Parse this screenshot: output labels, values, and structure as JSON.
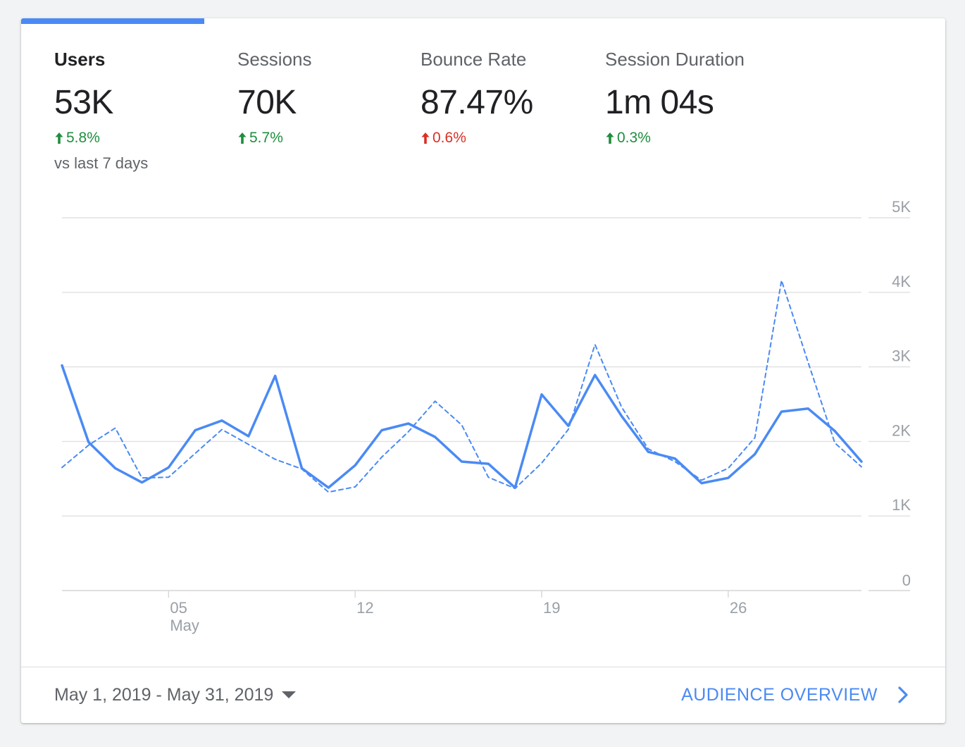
{
  "metrics": [
    {
      "label": "Users",
      "value": "53K",
      "change": "5.8%",
      "direction": "up",
      "sentiment": "positive",
      "active": true
    },
    {
      "label": "Sessions",
      "value": "70K",
      "change": "5.7%",
      "direction": "up",
      "sentiment": "positive",
      "active": false
    },
    {
      "label": "Bounce Rate",
      "value": "87.47%",
      "change": "0.6%",
      "direction": "up",
      "sentiment": "negative",
      "active": false
    },
    {
      "label": "Session Duration",
      "value": "1m 04s",
      "change": "0.3%",
      "direction": "up",
      "sentiment": "positive",
      "active": false
    }
  ],
  "compare_text": "vs last 7 days",
  "colors": {
    "accent": "#4a8af4",
    "positive": "#1e8e3e",
    "negative": "#d93025",
    "muted": "#5f6368",
    "grid": "#e0e0e0",
    "axis_text": "#9aa0a6"
  },
  "chart_data": {
    "type": "line",
    "x": [
      "2019-05-01",
      "2019-05-02",
      "2019-05-03",
      "2019-05-04",
      "2019-05-05",
      "2019-05-06",
      "2019-05-07",
      "2019-05-08",
      "2019-05-09",
      "2019-05-10",
      "2019-05-11",
      "2019-05-12",
      "2019-05-13",
      "2019-05-14",
      "2019-05-15",
      "2019-05-16",
      "2019-05-17",
      "2019-05-18",
      "2019-05-19",
      "2019-05-20",
      "2019-05-21",
      "2019-05-22",
      "2019-05-23",
      "2019-05-24",
      "2019-05-25",
      "2019-05-26",
      "2019-05-27",
      "2019-05-28",
      "2019-05-29",
      "2019-05-30",
      "2019-05-31"
    ],
    "series": [
      {
        "style": "solid",
        "values": [
          3020,
          1990,
          1640,
          1450,
          1650,
          2150,
          2280,
          2070,
          2880,
          1640,
          1380,
          1680,
          2150,
          2240,
          2060,
          1730,
          1700,
          1380,
          2630,
          2210,
          2890,
          2340,
          1860,
          1770,
          1440,
          1510,
          1830,
          2400,
          2440,
          2140,
          1730
        ]
      },
      {
        "style": "dashed",
        "values": [
          1650,
          1950,
          2180,
          1510,
          1520,
          1840,
          2160,
          1960,
          1760,
          1630,
          1320,
          1390,
          1790,
          2130,
          2540,
          2220,
          1520,
          1370,
          1710,
          2160,
          3300,
          2460,
          1900,
          1730,
          1480,
          1640,
          2050,
          4160,
          3060,
          1980,
          1660
        ]
      }
    ],
    "yticks": [
      "0",
      "1K",
      "2K",
      "3K",
      "4K",
      "5K"
    ],
    "ylim": [
      0,
      5000
    ],
    "xticks": [
      {
        "index": 4,
        "label": "05",
        "sublabel": "May"
      },
      {
        "index": 11,
        "label": "12",
        "sublabel": ""
      },
      {
        "index": 18,
        "label": "19",
        "sublabel": ""
      },
      {
        "index": 25,
        "label": "26",
        "sublabel": ""
      }
    ],
    "grid": true,
    "legend": "none"
  },
  "footer": {
    "date_range": "May 1, 2019 - May 31, 2019",
    "link_label": "AUDIENCE OVERVIEW"
  }
}
